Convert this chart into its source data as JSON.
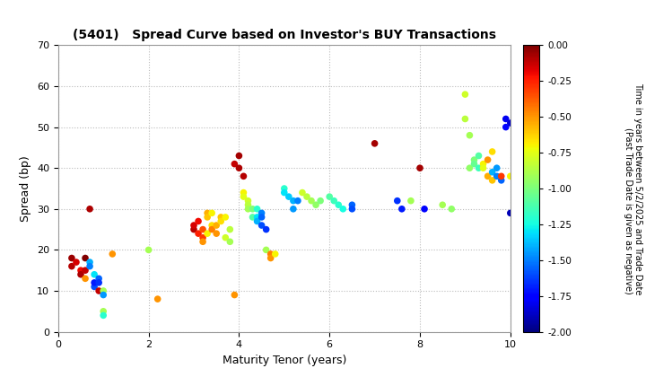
{
  "title": "(5401)   Spread Curve based on Investor's BUY Transactions",
  "xlabel": "Maturity Tenor (years)",
  "ylabel": "Spread (bp)",
  "xlim": [
    0,
    10
  ],
  "ylim": [
    0,
    70
  ],
  "xticks": [
    0,
    2,
    4,
    6,
    8,
    10
  ],
  "yticks": [
    0,
    10,
    20,
    30,
    40,
    50,
    60,
    70
  ],
  "colorbar_label1": "Time in years between 5/2/2025 and Trade Date",
  "colorbar_label2": "(Past Trade Date is given as negative)",
  "cmap_vmin": -2.0,
  "cmap_vmax": 0.0,
  "points": [
    [
      0.3,
      18,
      -0.05
    ],
    [
      0.3,
      16,
      -0.1
    ],
    [
      0.4,
      17,
      -0.15
    ],
    [
      0.5,
      15,
      -0.2
    ],
    [
      0.5,
      14,
      -0.08
    ],
    [
      0.6,
      15,
      -0.12
    ],
    [
      0.6,
      13,
      -0.5
    ],
    [
      0.6,
      18,
      -0.0
    ],
    [
      0.7,
      30,
      -0.08
    ],
    [
      0.7,
      17,
      -1.4
    ],
    [
      0.7,
      16,
      -1.5
    ],
    [
      0.8,
      11,
      -1.6
    ],
    [
      0.8,
      12,
      -1.7
    ],
    [
      0.8,
      14,
      -1.3
    ],
    [
      0.9,
      13,
      -1.55
    ],
    [
      0.9,
      12,
      -1.65
    ],
    [
      0.9,
      10,
      -0.12
    ],
    [
      1.0,
      10,
      -0.9
    ],
    [
      1.0,
      9,
      -1.45
    ],
    [
      1.0,
      5,
      -0.9
    ],
    [
      1.0,
      4,
      -1.2
    ],
    [
      1.2,
      19,
      -0.5
    ],
    [
      2.0,
      20,
      -0.9
    ],
    [
      2.2,
      8,
      -0.5
    ],
    [
      3.0,
      25,
      -0.1
    ],
    [
      3.0,
      26,
      -0.15
    ],
    [
      3.1,
      27,
      -0.2
    ],
    [
      3.1,
      24,
      -0.25
    ],
    [
      3.2,
      23,
      -0.3
    ],
    [
      3.2,
      25,
      -0.35
    ],
    [
      3.2,
      22,
      -0.5
    ],
    [
      3.3,
      29,
      -0.55
    ],
    [
      3.3,
      28,
      -0.6
    ],
    [
      3.3,
      24,
      -0.7
    ],
    [
      3.4,
      26,
      -0.65
    ],
    [
      3.4,
      29,
      -0.7
    ],
    [
      3.4,
      25,
      -0.45
    ],
    [
      3.5,
      24,
      -0.5
    ],
    [
      3.5,
      26,
      -0.55
    ],
    [
      3.6,
      28,
      -0.6
    ],
    [
      3.6,
      27,
      -0.65
    ],
    [
      3.7,
      28,
      -0.7
    ],
    [
      3.7,
      23,
      -0.8
    ],
    [
      3.8,
      25,
      -0.85
    ],
    [
      3.8,
      22,
      -0.9
    ],
    [
      3.9,
      41,
      -0.12
    ],
    [
      3.9,
      9,
      -0.5
    ],
    [
      4.0,
      43,
      -0.07
    ],
    [
      4.0,
      40,
      -0.08
    ],
    [
      4.1,
      38,
      -0.1
    ],
    [
      4.1,
      34,
      -0.7
    ],
    [
      4.1,
      33,
      -0.75
    ],
    [
      4.2,
      32,
      -0.8
    ],
    [
      4.2,
      31,
      -0.85
    ],
    [
      4.2,
      30,
      -0.9
    ],
    [
      4.3,
      30,
      -1.0
    ],
    [
      4.3,
      28,
      -1.1
    ],
    [
      4.4,
      30,
      -1.2
    ],
    [
      4.4,
      28,
      -1.3
    ],
    [
      4.4,
      27,
      -1.4
    ],
    [
      4.5,
      29,
      -1.5
    ],
    [
      4.5,
      28,
      -1.55
    ],
    [
      4.5,
      26,
      -1.6
    ],
    [
      4.6,
      25,
      -1.65
    ],
    [
      4.6,
      20,
      -0.9
    ],
    [
      4.7,
      19,
      -0.45
    ],
    [
      4.7,
      18,
      -0.5
    ],
    [
      4.8,
      19,
      -0.7
    ],
    [
      5.0,
      35,
      -1.2
    ],
    [
      5.0,
      34,
      -1.3
    ],
    [
      5.1,
      33,
      -1.35
    ],
    [
      5.2,
      32,
      -1.4
    ],
    [
      5.2,
      30,
      -1.45
    ],
    [
      5.3,
      32,
      -1.5
    ],
    [
      5.4,
      34,
      -0.8
    ],
    [
      5.5,
      33,
      -0.85
    ],
    [
      5.6,
      32,
      -0.9
    ],
    [
      5.7,
      31,
      -0.95
    ],
    [
      5.8,
      32,
      -1.0
    ],
    [
      6.0,
      33,
      -1.1
    ],
    [
      6.1,
      32,
      -1.15
    ],
    [
      6.2,
      31,
      -1.2
    ],
    [
      6.3,
      30,
      -1.25
    ],
    [
      6.5,
      31,
      -1.55
    ],
    [
      6.5,
      30,
      -1.6
    ],
    [
      7.0,
      46,
      -0.07
    ],
    [
      7.5,
      32,
      -1.65
    ],
    [
      7.6,
      30,
      -1.7
    ],
    [
      7.8,
      32,
      -0.9
    ],
    [
      8.0,
      40,
      -0.07
    ],
    [
      8.1,
      30,
      -1.75
    ],
    [
      8.5,
      31,
      -0.9
    ],
    [
      8.7,
      30,
      -0.95
    ],
    [
      9.0,
      58,
      -0.8
    ],
    [
      9.0,
      52,
      -0.85
    ],
    [
      9.1,
      48,
      -0.9
    ],
    [
      9.1,
      40,
      -0.95
    ],
    [
      9.2,
      42,
      -1.0
    ],
    [
      9.2,
      41,
      -1.05
    ],
    [
      9.3,
      43,
      -1.1
    ],
    [
      9.3,
      40,
      -1.15
    ],
    [
      9.4,
      41,
      -0.7
    ],
    [
      9.4,
      40,
      -0.75
    ],
    [
      9.5,
      42,
      -0.5
    ],
    [
      9.5,
      38,
      -0.55
    ],
    [
      9.6,
      37,
      -0.6
    ],
    [
      9.6,
      44,
      -0.65
    ],
    [
      9.6,
      39,
      -1.4
    ],
    [
      9.7,
      40,
      -1.45
    ],
    [
      9.7,
      38,
      -1.5
    ],
    [
      9.8,
      37,
      -1.55
    ],
    [
      9.8,
      38,
      -0.3
    ],
    [
      9.9,
      50,
      -1.75
    ],
    [
      9.9,
      52,
      -1.8
    ],
    [
      10.0,
      51,
      -1.85
    ],
    [
      10.0,
      29,
      -1.9
    ],
    [
      10.0,
      38,
      -0.7
    ]
  ],
  "background_color": "#ffffff",
  "grid_color": "#bbbbbb",
  "point_size": 30,
  "cmap": "jet"
}
